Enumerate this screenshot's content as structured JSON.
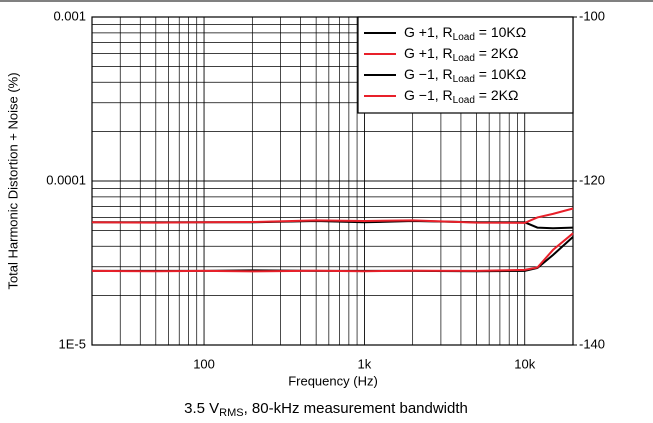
{
  "chart_data": {
    "type": "line",
    "subtitle": [
      "3.5 V",
      "RMS",
      ", 80-kHz measurement bandwidth"
    ],
    "xlabel": "Frequency (Hz)",
    "ylabel": "Total Harmonic Distortion + Noise (%)",
    "x": [
      20,
      50,
      100,
      200,
      500,
      1000,
      2000,
      5000,
      10000,
      12000,
      15000,
      20000
    ],
    "xlim": [
      20,
      20000
    ],
    "xticks": [
      {
        "value": 100,
        "label": "100"
      },
      {
        "value": 1000,
        "label": "1k"
      },
      {
        "value": 10000,
        "label": "10k"
      }
    ],
    "xscale": "log",
    "ylim": [
      1e-05,
      0.001
    ],
    "yticks": [
      {
        "value": 1e-05,
        "label": "1E-5"
      },
      {
        "value": 0.0001,
        "label": "0.0001"
      },
      {
        "value": 0.001,
        "label": "0.001"
      }
    ],
    "yscale": "log",
    "y2lim": [
      -140,
      -100
    ],
    "y2ticks": [
      -140,
      -120,
      -100
    ],
    "grid": true,
    "legend": "upper right",
    "series": [
      {
        "name": [
          "G +1, R",
          "Load",
          " = 10KΩ"
        ],
        "color": "#000000",
        "values": [
          2.83e-05,
          2.83e-05,
          2.83e-05,
          2.85e-05,
          2.83e-05,
          2.83e-05,
          2.83e-05,
          2.82e-05,
          2.83e-05,
          2.95e-05,
          3.54e-05,
          4.56e-05
        ]
      },
      {
        "name": [
          "G +1, R",
          "Load",
          " = 2KΩ"
        ],
        "color": "#e8202a",
        "values": [
          2.83e-05,
          2.82e-05,
          2.83e-05,
          2.81e-05,
          2.84e-05,
          2.82e-05,
          2.84e-05,
          2.83e-05,
          2.87e-05,
          2.97e-05,
          3.8e-05,
          4.8e-05
        ]
      },
      {
        "name": [
          "G −1, R",
          "Load",
          " = 10KΩ"
        ],
        "color": "#000000",
        "values": [
          5.6e-05,
          5.6e-05,
          5.6e-05,
          5.6e-05,
          5.7e-05,
          5.6e-05,
          5.7e-05,
          5.6e-05,
          5.6e-05,
          5.2e-05,
          5.15e-05,
          5.2e-05
        ]
      },
      {
        "name": [
          "G −1, R",
          "Load",
          " = 2KΩ"
        ],
        "color": "#e8202a",
        "values": [
          5.6e-05,
          5.58e-05,
          5.6e-05,
          5.62e-05,
          5.75e-05,
          5.7e-05,
          5.75e-05,
          5.58e-05,
          5.55e-05,
          6e-05,
          6.3e-05,
          6.8e-05
        ]
      }
    ]
  }
}
